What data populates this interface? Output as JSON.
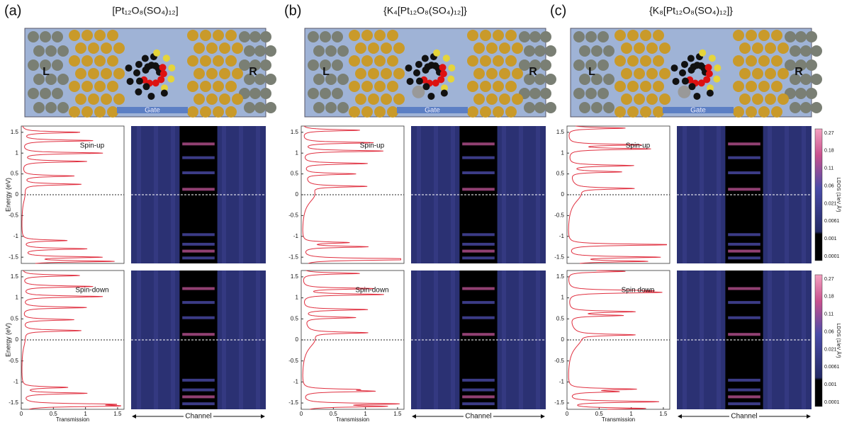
{
  "panels": [
    {
      "label": "(a)",
      "title": "[Pt₁₂O₈(SO₄)₁₂]",
      "device": {
        "left": "L",
        "right": "R",
        "gate": "Gate"
      },
      "plots": [
        {
          "spin": "Spin-up"
        },
        {
          "spin": "Spin-down"
        }
      ]
    },
    {
      "label": "(b)",
      "title": "{K₄[Pt₁₂O₈(SO₄)₁₂]}",
      "device": {
        "left": "L",
        "right": "R",
        "gate": "Gate"
      },
      "plots": [
        {
          "spin": "Spin-up"
        },
        {
          "spin": "Spin-down"
        }
      ]
    },
    {
      "label": "(c)",
      "title": "{K₈[Pt₁₂O₈(SO₄)₁₂]}",
      "device": {
        "left": "L",
        "right": "R",
        "gate": "Gate"
      },
      "plots": [
        {
          "spin": "Spin-up"
        },
        {
          "spin": "Spin down"
        }
      ]
    }
  ],
  "axes": {
    "y_label": "Energy (eV)",
    "y_ticks": [
      1.5,
      1,
      0.5,
      0,
      -0.5,
      -1,
      -1.5
    ],
    "x_label": "Transmission",
    "x_ticks": [
      0,
      0.5,
      1,
      1.5
    ],
    "heatmap_label": "Channel"
  },
  "colorbar": {
    "label": "LDOS (1/eV Å³)",
    "ticks": [
      0.27,
      0.18,
      0.11,
      0.06,
      0.021,
      0.0061,
      0.001,
      0.0001
    ]
  }
}
